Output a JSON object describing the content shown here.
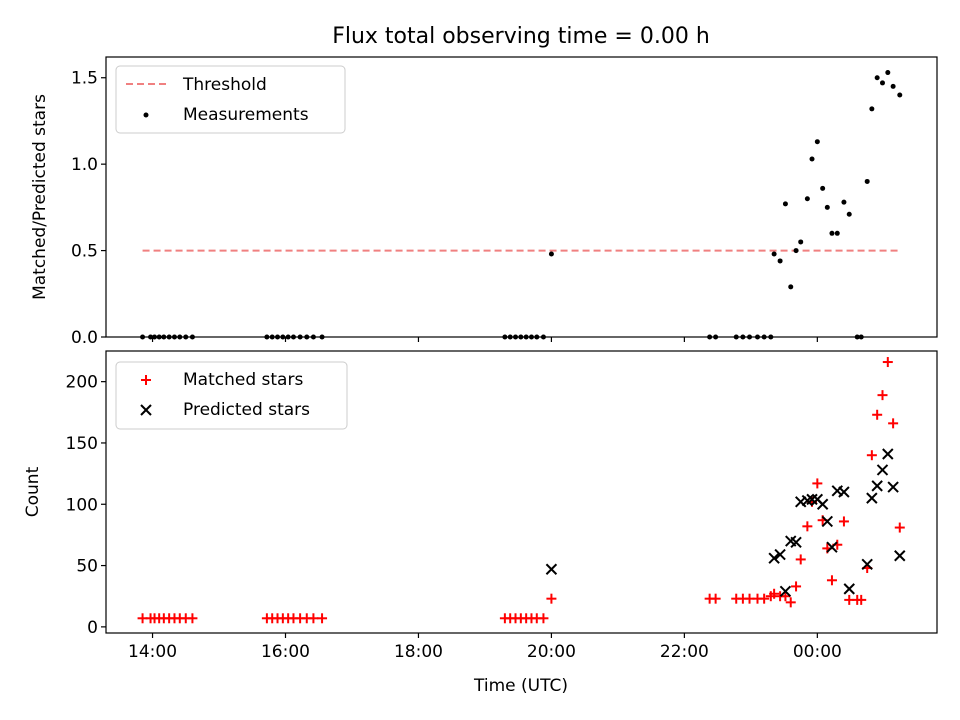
{
  "chart_data": [
    {
      "type": "scatter",
      "title": "Flux total observing time = 0.00 h",
      "ylabel": "Matched/Predicted stars",
      "xlabel": "",
      "x_unit": "hours (14:00 = 14, 00:00 = 24)",
      "xlim": [
        13.3,
        25.8
      ],
      "ylim": [
        0,
        1.62
      ],
      "yticks": [
        0.0,
        0.5,
        1.0,
        1.5
      ],
      "ytick_labels": [
        "0.0",
        "0.5",
        "1.0",
        "1.5"
      ],
      "grid": false,
      "legend_position": "top-left",
      "threshold": {
        "name": "Threshold",
        "y": 0.5,
        "x_range": [
          13.85,
          25.25
        ],
        "color": "#f08080",
        "style": "dashed"
      },
      "series": [
        {
          "name": "Measurements",
          "color": "#000000",
          "marker": "dot",
          "points": [
            [
              13.85,
              0
            ],
            [
              13.97,
              0
            ],
            [
              14.03,
              0
            ],
            [
              14.1,
              0
            ],
            [
              14.17,
              0
            ],
            [
              14.25,
              0
            ],
            [
              14.33,
              0
            ],
            [
              14.41,
              0
            ],
            [
              14.5,
              0
            ],
            [
              14.6,
              0
            ],
            [
              15.72,
              0
            ],
            [
              15.8,
              0
            ],
            [
              15.88,
              0
            ],
            [
              15.96,
              0
            ],
            [
              16.04,
              0
            ],
            [
              16.12,
              0
            ],
            [
              16.22,
              0
            ],
            [
              16.32,
              0
            ],
            [
              16.42,
              0
            ],
            [
              16.55,
              0
            ],
            [
              19.3,
              0
            ],
            [
              19.38,
              0
            ],
            [
              19.46,
              0
            ],
            [
              19.54,
              0
            ],
            [
              19.62,
              0
            ],
            [
              19.7,
              0
            ],
            [
              19.78,
              0
            ],
            [
              19.88,
              0
            ],
            [
              20.0,
              0.48
            ],
            [
              22.38,
              0
            ],
            [
              22.47,
              0
            ],
            [
              22.78,
              0
            ],
            [
              22.88,
              0
            ],
            [
              22.98,
              0
            ],
            [
              23.1,
              0
            ],
            [
              23.2,
              0
            ],
            [
              23.3,
              0
            ],
            [
              23.35,
              0.48
            ],
            [
              23.44,
              0.44
            ],
            [
              23.52,
              0.77
            ],
            [
              23.6,
              0.29
            ],
            [
              23.68,
              0.5
            ],
            [
              23.75,
              0.55
            ],
            [
              23.85,
              0.8
            ],
            [
              23.92,
              1.03
            ],
            [
              24.0,
              1.13
            ],
            [
              24.08,
              0.86
            ],
            [
              24.15,
              0.75
            ],
            [
              24.22,
              0.6
            ],
            [
              24.3,
              0.6
            ],
            [
              24.4,
              0.78
            ],
            [
              24.48,
              0.71
            ],
            [
              24.6,
              0
            ],
            [
              24.66,
              0
            ],
            [
              24.75,
              0.9
            ],
            [
              24.82,
              1.32
            ],
            [
              24.9,
              1.5
            ],
            [
              24.98,
              1.47
            ],
            [
              25.06,
              1.53
            ],
            [
              25.14,
              1.45
            ],
            [
              25.24,
              1.4
            ]
          ]
        }
      ]
    },
    {
      "type": "scatter",
      "title": "",
      "ylabel": "Count",
      "xlabel": "Time (UTC)",
      "x_unit": "hours (14:00 = 14, 00:00 = 24)",
      "xlim": [
        13.3,
        25.8
      ],
      "ylim": [
        -5,
        225
      ],
      "xticks": [
        14,
        16,
        18,
        20,
        22,
        24
      ],
      "xtick_labels": [
        "14:00",
        "16:00",
        "18:00",
        "20:00",
        "22:00",
        "00:00"
      ],
      "yticks": [
        0,
        50,
        100,
        150,
        200
      ],
      "ytick_labels": [
        "0",
        "50",
        "100",
        "150",
        "200"
      ],
      "grid": false,
      "legend_position": "top-left",
      "series": [
        {
          "name": "Matched stars",
          "color": "#ff0000",
          "marker": "plus",
          "points": [
            [
              13.85,
              7
            ],
            [
              13.97,
              7
            ],
            [
              14.03,
              7
            ],
            [
              14.1,
              7
            ],
            [
              14.17,
              7
            ],
            [
              14.25,
              7
            ],
            [
              14.33,
              7
            ],
            [
              14.41,
              7
            ],
            [
              14.5,
              7
            ],
            [
              14.6,
              7
            ],
            [
              15.72,
              7
            ],
            [
              15.8,
              7
            ],
            [
              15.88,
              7
            ],
            [
              15.96,
              7
            ],
            [
              16.04,
              7
            ],
            [
              16.12,
              7
            ],
            [
              16.22,
              7
            ],
            [
              16.32,
              7
            ],
            [
              16.42,
              7
            ],
            [
              16.55,
              7
            ],
            [
              19.3,
              7
            ],
            [
              19.38,
              7
            ],
            [
              19.46,
              7
            ],
            [
              19.54,
              7
            ],
            [
              19.62,
              7
            ],
            [
              19.7,
              7
            ],
            [
              19.78,
              7
            ],
            [
              19.88,
              7
            ],
            [
              20.0,
              23
            ],
            [
              22.38,
              23
            ],
            [
              22.47,
              23
            ],
            [
              22.78,
              23
            ],
            [
              22.88,
              23
            ],
            [
              22.98,
              23
            ],
            [
              23.1,
              23
            ],
            [
              23.2,
              23
            ],
            [
              23.3,
              25
            ],
            [
              23.35,
              27
            ],
            [
              23.44,
              25
            ],
            [
              23.52,
              25
            ],
            [
              23.6,
              20
            ],
            [
              23.68,
              33
            ],
            [
              23.75,
              55
            ],
            [
              23.85,
              82
            ],
            [
              23.92,
              102
            ],
            [
              24.0,
              117
            ],
            [
              24.08,
              87
            ],
            [
              24.15,
              64
            ],
            [
              24.22,
              38
            ],
            [
              24.3,
              67
            ],
            [
              24.4,
              86
            ],
            [
              24.48,
              22
            ],
            [
              24.6,
              22
            ],
            [
              24.66,
              22
            ],
            [
              24.75,
              48
            ],
            [
              24.82,
              140
            ],
            [
              24.9,
              173
            ],
            [
              24.98,
              189
            ],
            [
              25.06,
              216
            ],
            [
              25.14,
              166
            ],
            [
              25.24,
              81
            ]
          ]
        },
        {
          "name": "Predicted stars",
          "color": "#000000",
          "marker": "x",
          "points": [
            [
              20.0,
              47
            ],
            [
              23.35,
              56
            ],
            [
              23.44,
              59
            ],
            [
              23.52,
              29
            ],
            [
              23.6,
              70
            ],
            [
              23.68,
              69
            ],
            [
              23.75,
              102
            ],
            [
              23.85,
              103
            ],
            [
              23.92,
              104
            ],
            [
              24.0,
              104
            ],
            [
              24.08,
              100
            ],
            [
              24.15,
              86
            ],
            [
              24.22,
              65
            ],
            [
              24.3,
              111
            ],
            [
              24.4,
              110
            ],
            [
              24.48,
              31
            ],
            [
              24.75,
              51
            ],
            [
              24.82,
              105
            ],
            [
              24.9,
              115
            ],
            [
              24.98,
              128
            ],
            [
              25.06,
              141
            ],
            [
              25.14,
              114
            ],
            [
              25.24,
              58
            ]
          ]
        }
      ]
    }
  ]
}
